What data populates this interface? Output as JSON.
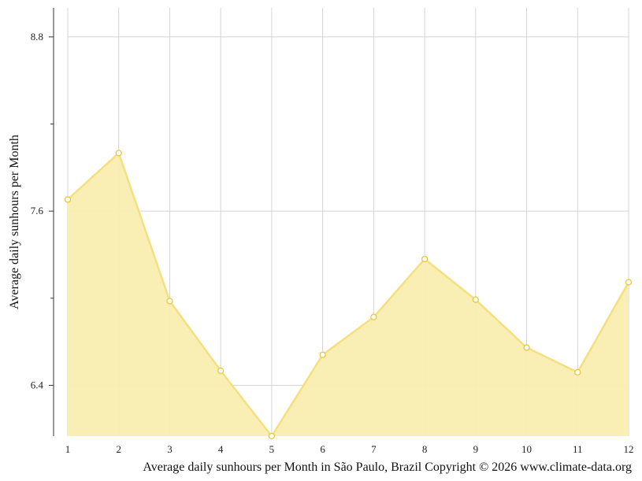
{
  "chart_data": {
    "type": "area",
    "x": [
      1,
      2,
      3,
      4,
      5,
      6,
      7,
      8,
      9,
      10,
      11,
      12
    ],
    "values": [
      7.68,
      8.0,
      6.98,
      6.5,
      6.05,
      6.61,
      6.87,
      7.27,
      6.99,
      6.66,
      6.49,
      7.11
    ],
    "ylabel": "Average daily sunhours per Month",
    "caption": "Average daily sunhours per Month in São Paulo, Brazil Copyright © 2026 www.climate-data.org",
    "y_ticks": [
      6.4,
      7.6,
      8.8
    ],
    "x_ticks": [
      "1",
      "2",
      "3",
      "4",
      "5",
      "6",
      "7",
      "8",
      "9",
      "10",
      "11",
      "12"
    ],
    "ylim": [
      6.05,
      9.0
    ],
    "xlim": [
      1,
      12
    ],
    "grid": true,
    "colors": {
      "fill": "#f9eeb0",
      "line": "#f5df7e",
      "marker_stroke": "#e8c83a",
      "grid": "#d4d4d4",
      "axis": "#333333"
    }
  }
}
